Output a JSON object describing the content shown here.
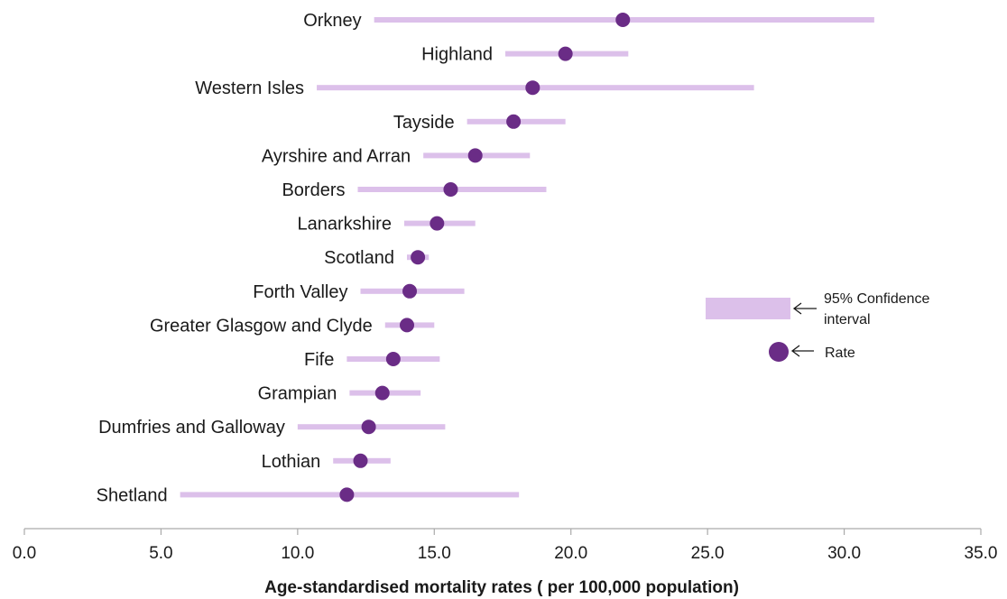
{
  "chart_data": {
    "type": "scatter",
    "subtype": "dot-plot-with-confidence-intervals",
    "title": "",
    "xlabel": "Age-standardised mortality rates ( per 100,000 population)",
    "ylabel": "",
    "xlim": [
      0,
      35
    ],
    "xticks": [
      0,
      5,
      10,
      15,
      20,
      25,
      30,
      35
    ],
    "xtick_labels": [
      "0.0",
      "5.0",
      "10.0",
      "15.0",
      "20.0",
      "25.0",
      "30.0",
      "35.0"
    ],
    "grid": false,
    "legend_position": "right",
    "categories": [
      "Orkney",
      "Highland",
      "Western Isles",
      "Tayside",
      "Ayrshire and Arran",
      "Borders",
      "Lanarkshire",
      "Scotland",
      "Forth Valley",
      "Greater Glasgow and Clyde",
      "Fife",
      "Grampian",
      "Dumfries and Galloway",
      "Lothian",
      "Shetland"
    ],
    "series": [
      {
        "name": "Rate",
        "values": [
          21.9,
          19.8,
          18.6,
          17.9,
          16.5,
          15.6,
          15.1,
          14.4,
          14.1,
          14.0,
          13.5,
          13.1,
          12.6,
          12.3,
          11.8
        ]
      }
    ],
    "ci_lower": [
      12.8,
      17.6,
      10.7,
      16.2,
      14.6,
      12.2,
      13.9,
      14.0,
      12.3,
      13.2,
      11.8,
      11.9,
      10.0,
      11.3,
      5.7
    ],
    "ci_upper": [
      31.1,
      22.1,
      26.7,
      19.8,
      18.5,
      19.1,
      16.5,
      14.8,
      16.1,
      15.0,
      15.2,
      14.5,
      15.4,
      13.4,
      18.1
    ],
    "legend": [
      {
        "label_line1": "95% Confidence",
        "label_line2": "interval",
        "kind": "ci"
      },
      {
        "label": "Rate",
        "kind": "rate"
      }
    ],
    "colors": {
      "ci": "#dcc0ea",
      "rate": "#6a2c86",
      "axis": "#aaaaaa"
    }
  }
}
